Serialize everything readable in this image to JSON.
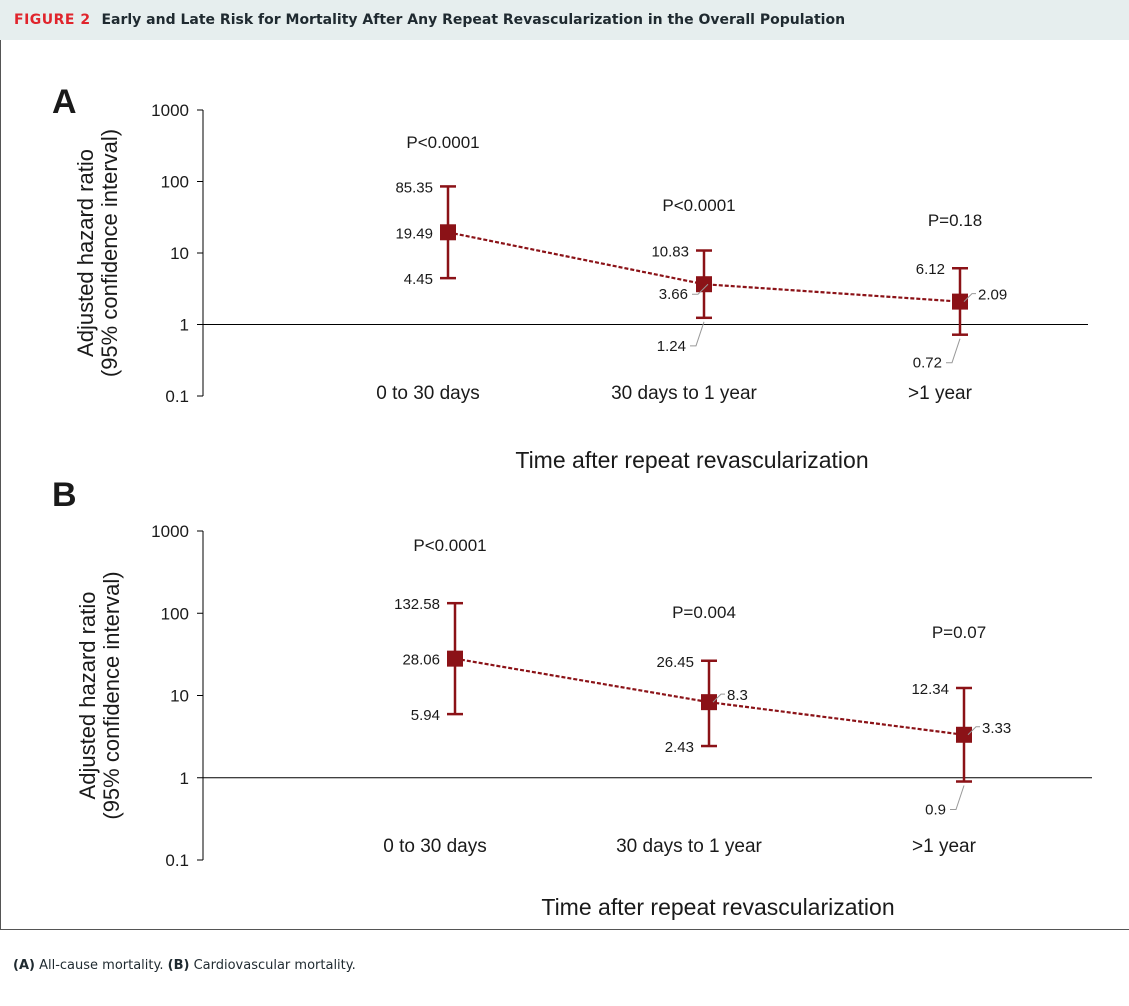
{
  "header": {
    "figure_label": "FIGURE 2",
    "title": "Early and Late Risk for Mortality After Any Repeat Revascularization in the Overall Population"
  },
  "caption": {
    "a_label": "(A)",
    "a_text": "All-cause mortality.",
    "b_label": "(B)",
    "b_text": "Cardiovascular mortality."
  },
  "colors": {
    "series": "#8b1217",
    "axis": "#000000",
    "label_line": "#999999"
  },
  "chart_data": [
    {
      "panel": "A",
      "type": "scatter",
      "yscale": "log",
      "ylim": [
        0.1,
        1000
      ],
      "yticks": [
        "1000",
        "100",
        "10",
        "1",
        "0.1"
      ],
      "ylabel_line1": "Adjusted hazard ratio",
      "ylabel_line2": "(95% confidence interval)",
      "xlabel": "Time after repeat revascularization",
      "categories": [
        "0 to 30 days",
        "30 days to 1 year",
        ">1 year"
      ],
      "points": [
        {
          "category": "0 to 30 days",
          "hr": 19.49,
          "lower": 4.45,
          "upper": 85.35,
          "hr_label": "19.49",
          "lower_label": "4.45",
          "upper_label": "85.35",
          "p_value": "P<0.0001"
        },
        {
          "category": "30 days to 1 year",
          "hr": 3.66,
          "lower": 1.24,
          "upper": 10.83,
          "hr_label": "3.66",
          "lower_label": "1.24",
          "upper_label": "10.83",
          "p_value": "P<0.0001"
        },
        {
          "category": ">1 year",
          "hr": 2.09,
          "lower": 0.72,
          "upper": 6.12,
          "hr_label": "2.09",
          "lower_label": "0.72",
          "upper_label": "6.12",
          "p_value": "P=0.18"
        }
      ],
      "reference_line": 1
    },
    {
      "panel": "B",
      "type": "scatter",
      "yscale": "log",
      "ylim": [
        0.1,
        1000
      ],
      "yticks": [
        "1000",
        "100",
        "10",
        "1",
        "0.1"
      ],
      "ylabel_line1": "Adjusted hazard ratio",
      "ylabel_line2": "(95% confidence interval)",
      "xlabel": "Time after repeat revascularization",
      "categories": [
        "0 to 30 days",
        "30 days to 1 year",
        ">1 year"
      ],
      "points": [
        {
          "category": "0 to 30 days",
          "hr": 28.06,
          "lower": 5.94,
          "upper": 132.58,
          "hr_label": "28.06",
          "lower_label": "5.94",
          "upper_label": "132.58",
          "p_value": "P<0.0001"
        },
        {
          "category": "30 days to 1 year",
          "hr": 8.3,
          "lower": 2.43,
          "upper": 26.45,
          "hr_label": "8.3",
          "lower_label": "2.43",
          "upper_label": "26.45",
          "p_value": "P=0.004"
        },
        {
          "category": ">1 year",
          "hr": 3.33,
          "lower": 0.9,
          "upper": 12.34,
          "hr_label": "3.33",
          "lower_label": "0.9",
          "upper_label": "12.34",
          "p_value": "P=0.07"
        }
      ],
      "reference_line": 1
    }
  ]
}
